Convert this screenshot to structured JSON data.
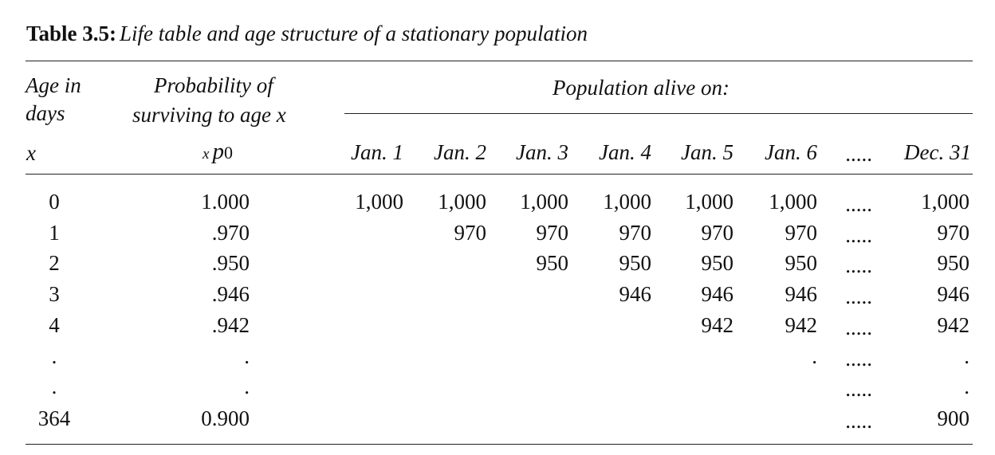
{
  "caption": {
    "label": "Table 3.5:",
    "text": "Life table and age structure of a stationary population"
  },
  "headers": {
    "age_line1": "Age in",
    "age_line2": "days",
    "age_symbol": "x",
    "prob_line1": "Probability of",
    "prob_line2": "surviving to age x",
    "prob_symbol_sub": "x",
    "prob_symbol_main": "p",
    "prob_symbol_subscript": "0",
    "population_group": "Population alive on:"
  },
  "date_columns": [
    "Jan. 1",
    "Jan. 2",
    "Jan. 3",
    "Jan. 4",
    "Jan. 5",
    "Jan. 6",
    ".....",
    "Dec. 31"
  ],
  "rows": [
    {
      "age": "0",
      "prob": "1.000",
      "cells": [
        "1,000",
        "1,000",
        "1,000",
        "1,000",
        "1,000",
        "1,000",
        ".....",
        "1,000"
      ]
    },
    {
      "age": "1",
      "prob": ".970",
      "cells": [
        "",
        "970",
        "970",
        "970",
        "970",
        "970",
        ".....",
        "970"
      ]
    },
    {
      "age": "2",
      "prob": ".950",
      "cells": [
        "",
        "",
        "950",
        "950",
        "950",
        "950",
        ".....",
        "950"
      ]
    },
    {
      "age": "3",
      "prob": ".946",
      "cells": [
        "",
        "",
        "",
        "946",
        "946",
        "946",
        ".....",
        "946"
      ]
    },
    {
      "age": "4",
      "prob": ".942",
      "cells": [
        "",
        "",
        "",
        "",
        "942",
        "942",
        ".....",
        "942"
      ]
    },
    {
      "age": ".",
      "prob": ".",
      "cells": [
        "",
        "",
        "",
        "",
        "",
        ".",
        ".....",
        "."
      ]
    },
    {
      "age": ".",
      "prob": ".",
      "cells": [
        "",
        "",
        "",
        "",
        "",
        "",
        ".....",
        "."
      ]
    },
    {
      "age": "364",
      "prob": "0.900",
      "cells": [
        "",
        "",
        "",
        "",
        "",
        "",
        ".....",
        "900"
      ]
    }
  ]
}
